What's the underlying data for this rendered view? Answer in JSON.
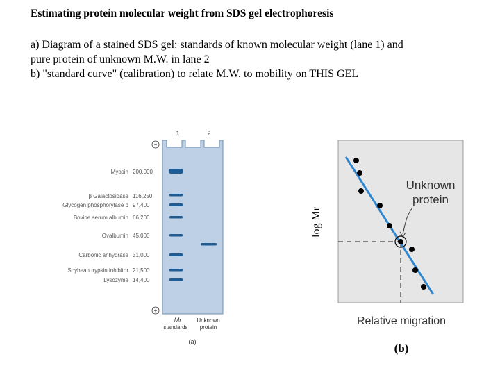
{
  "title": "Estimating protein molecular weight from SDS gel electrophoresis",
  "description": {
    "line_a1": "a) Diagram of a stained SDS gel: standards of known molecular weight (lane 1) and",
    "line_a2": "pure protein of unknown M.W. in lane 2",
    "line_b": "b) \"standard curve\" (calibration) to relate M.W. to mobility on THIS GEL"
  },
  "gel": {
    "lane1_label": "1",
    "lane2_label": "2",
    "minus_symbol": "−",
    "plus_symbol": "+",
    "standards": [
      {
        "name": "Myosin",
        "mw": "200,000"
      },
      {
        "name": "β Galactosidase",
        "mw": "116,250"
      },
      {
        "name": "Glycogen phosphorylase b",
        "mw": "97,400"
      },
      {
        "name": "Bovine serum albumin",
        "mw": "66,200"
      },
      {
        "name": "Ovalbumin",
        "mw": "45,000"
      },
      {
        "name": "Carbonic anhydrase",
        "mw": "31,000"
      },
      {
        "name": "Soybean trypsin inhibitor",
        "mw": "21,500"
      },
      {
        "name": "Lysozyme",
        "mw": "14,400"
      }
    ],
    "lane1_caption_mr": "Mr",
    "lane1_caption": "standards",
    "lane2_caption_1": "Unknown",
    "lane2_caption_2": "protein",
    "panel_label": "(a)",
    "colors": {
      "gel": "#bdd0e6",
      "band": "#1f5c94"
    }
  },
  "plot": {
    "ylabel": "log Mr",
    "xlabel": "Relative  migration",
    "annotation_1": "Unknown",
    "annotation_2": "protein",
    "panel_label": "(b)",
    "colors": {
      "background": "#e6e6e6",
      "fit_line": "#2e86d0",
      "points": "#000000"
    }
  }
}
